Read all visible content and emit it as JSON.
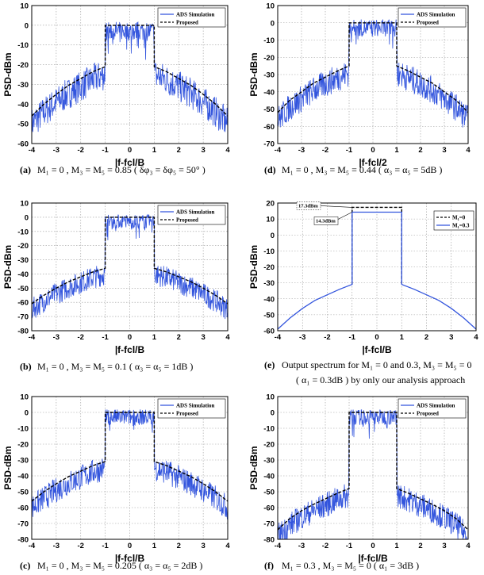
{
  "chart_data": [
    {
      "id": "a",
      "type": "line",
      "xlabel": "|f-fcl/B",
      "ylabel": "PSD-dBm",
      "xlim": [
        -4,
        4
      ],
      "ylim": [
        -60,
        10
      ],
      "xticks": [
        -4,
        -3,
        -2,
        -1,
        0,
        1,
        2,
        3,
        4
      ],
      "yticks": [
        10,
        0,
        -10,
        -20,
        -30,
        -40,
        -50,
        -60
      ],
      "grid": true,
      "legend_position": "top-right",
      "series": [
        {
          "name": "ADS Simulation",
          "style": "noisy",
          "color": "#3355dd"
        },
        {
          "name": "Proposed",
          "style": "dashed",
          "color": "#000000",
          "x": [
            -4,
            -3.5,
            -3,
            -2.5,
            -2,
            -1.5,
            -1,
            -1,
            1,
            1,
            1.5,
            2,
            2.5,
            3,
            3.5,
            4
          ],
          "y": [
            -46,
            -40,
            -35,
            -30.5,
            -27,
            -23.5,
            -21,
            0,
            0,
            -21,
            -23.5,
            -27,
            -30.5,
            -35,
            -40,
            -46
          ]
        }
      ],
      "caption": {
        "label": "(a)",
        "text": "M₁ = 0 , M₃ = M₅ = 0.85 ( δφ₃ = δφ₅ = 50° )"
      }
    },
    {
      "id": "b",
      "type": "line",
      "xlabel": "|f-fcl/B",
      "ylabel": "PSD-dBm",
      "xlim": [
        -4,
        4
      ],
      "ylim": [
        -80,
        10
      ],
      "xticks": [
        -4,
        -3,
        -2,
        -1,
        0,
        1,
        2,
        3,
        4
      ],
      "yticks": [
        10,
        0,
        -10,
        -20,
        -30,
        -40,
        -50,
        -60,
        -70,
        -80
      ],
      "grid": true,
      "legend_position": "top-right",
      "series": [
        {
          "name": "ADS Simulation",
          "style": "noisy",
          "color": "#3355dd"
        },
        {
          "name": "Proposed",
          "style": "dashed",
          "color": "#000000",
          "x": [
            -4,
            -3.5,
            -3,
            -2.5,
            -2,
            -1.5,
            -1,
            -1,
            1,
            1,
            1.5,
            2,
            2.5,
            3,
            3.5,
            4
          ],
          "y": [
            -61,
            -55,
            -50,
            -45.5,
            -42,
            -38.5,
            -36,
            0,
            0,
            -36,
            -38.5,
            -42,
            -45.5,
            -50,
            -55,
            -61
          ]
        }
      ],
      "caption": {
        "label": "(b)",
        "text": "M₁ = 0 , M₃ = M₅ = 0.1 ( α₃ = α₅ = 1dB )"
      }
    },
    {
      "id": "c",
      "type": "line",
      "xlabel": "|f-fcl/B",
      "ylabel": "PSD-dBm",
      "xlim": [
        -4,
        4
      ],
      "ylim": [
        -80,
        10
      ],
      "xticks": [
        -4,
        -3,
        -2,
        -1,
        0,
        1,
        2,
        3,
        4
      ],
      "yticks": [
        10,
        0,
        -10,
        -20,
        -30,
        -40,
        -50,
        -60,
        -70,
        -80
      ],
      "grid": true,
      "legend_position": "top-right",
      "series": [
        {
          "name": "ADS Simulation",
          "style": "noisy",
          "color": "#3355dd"
        },
        {
          "name": "Proposed",
          "style": "dashed",
          "color": "#000000",
          "x": [
            -4,
            -3.5,
            -3,
            -2.5,
            -2,
            -1.5,
            -1,
            -1,
            1,
            1,
            1.5,
            2,
            2.5,
            3,
            3.5,
            4
          ],
          "y": [
            -56,
            -50,
            -45,
            -40.5,
            -37,
            -33.5,
            -31,
            0,
            0,
            -31,
            -33.5,
            -37,
            -40.5,
            -45,
            -50,
            -56
          ]
        }
      ],
      "caption": {
        "label": "(c)",
        "text": "M₁ = 0 , M₃ = M₅ = 0.205 ( α₃ = α₅ = 2dB )"
      }
    },
    {
      "id": "d",
      "type": "line",
      "xlabel": "|f-fcl/2",
      "ylabel": "PSD-dBm",
      "xlim": [
        -4,
        4
      ],
      "ylim": [
        -70,
        10
      ],
      "xticks": [
        -4,
        -3,
        -2,
        -1,
        0,
        1,
        2,
        3,
        4
      ],
      "yticks": [
        10,
        0,
        -10,
        -20,
        -30,
        -40,
        -50,
        -60,
        -70
      ],
      "grid": true,
      "legend_position": "top-right",
      "series": [
        {
          "name": "ADS Simulation",
          "style": "noisy",
          "color": "#3355dd"
        },
        {
          "name": "Proposed",
          "style": "dashed",
          "color": "#000000",
          "x": [
            -4,
            -3.5,
            -3,
            -2.5,
            -2,
            -1.5,
            -1,
            -1,
            1,
            1,
            1.5,
            2,
            2.5,
            3,
            3.5,
            4
          ],
          "y": [
            -52,
            -45,
            -40,
            -35,
            -31.5,
            -28,
            -25,
            0,
            0,
            -25,
            -28,
            -31.5,
            -35,
            -40,
            -45,
            -52
          ]
        }
      ],
      "caption": {
        "label": "(d)",
        "text": "M₁ = 0 , M₃ = M₅ = 0.44 ( α₃ = α₅ = 5dB )"
      }
    },
    {
      "id": "e",
      "type": "line",
      "xlabel": "|f-fcl/B",
      "ylabel": "PSD-dBm",
      "xlim": [
        -4,
        4
      ],
      "ylim": [
        -60,
        20
      ],
      "xticks": [
        -4,
        -3,
        -2,
        -1,
        0,
        1,
        2,
        3,
        4
      ],
      "yticks": [
        20,
        10,
        0,
        -10,
        -20,
        -30,
        -40,
        -50,
        -60
      ],
      "grid": true,
      "legend_position": "top-right",
      "series": [
        {
          "name": "M₁=0",
          "style": "dashed",
          "color": "#000000",
          "x": [
            -1,
            -1,
            1,
            1
          ],
          "y": [
            -31,
            17.3,
            17.3,
            -31
          ]
        },
        {
          "name": "M₁=0.3",
          "style": "solid",
          "color": "#3355dd",
          "x": [
            -4,
            -3.5,
            -3,
            -2.5,
            -2,
            -1.5,
            -1,
            -1,
            1,
            1,
            1.5,
            2,
            2.5,
            3,
            3.5,
            4
          ],
          "y": [
            -59,
            -52,
            -46,
            -41,
            -37.5,
            -34,
            -31,
            14.3,
            14.3,
            -31,
            -34,
            -37.5,
            -41,
            -46,
            -52,
            -59
          ]
        }
      ],
      "annotations": [
        "17.3dBm",
        "14.3dBm"
      ],
      "caption": {
        "label": "(e)",
        "text": "Output spectrum for M₁ = 0 and 0.3, M₃ = M₅ = 0",
        "text2": "( α₁ = 0.3dB ) by only our analysis approach"
      }
    },
    {
      "id": "f",
      "type": "line",
      "xlabel": "|f-fcl/B",
      "ylabel": "PSD-dBm",
      "xlim": [
        -4,
        4
      ],
      "ylim": [
        -80,
        10
      ],
      "xticks": [
        -4,
        -3,
        -2,
        -1,
        0,
        1,
        2,
        3,
        4
      ],
      "yticks": [
        10,
        0,
        -10,
        -20,
        -30,
        -40,
        -50,
        -60,
        -70,
        -80
      ],
      "grid": true,
      "legend_position": "top-right",
      "series": [
        {
          "name": "ADS Simulation",
          "style": "noisy",
          "color": "#3355dd"
        },
        {
          "name": "Proposed",
          "style": "dashed",
          "color": "#000000",
          "x": [
            -4,
            -3.5,
            -3,
            -2.5,
            -2,
            -1.5,
            -1,
            -1,
            1,
            1,
            1.5,
            2,
            2.5,
            3,
            3.5,
            4
          ],
          "y": [
            -74,
            -67,
            -62,
            -58,
            -54.5,
            -51,
            -48,
            0,
            0,
            -48,
            -51,
            -54.5,
            -58,
            -62,
            -67,
            -74
          ]
        }
      ],
      "caption": {
        "label": "(f)",
        "text": "M₁ = 0.3 , M₃ = M₅ = 0 ( α₁ = 3dB )"
      }
    }
  ]
}
